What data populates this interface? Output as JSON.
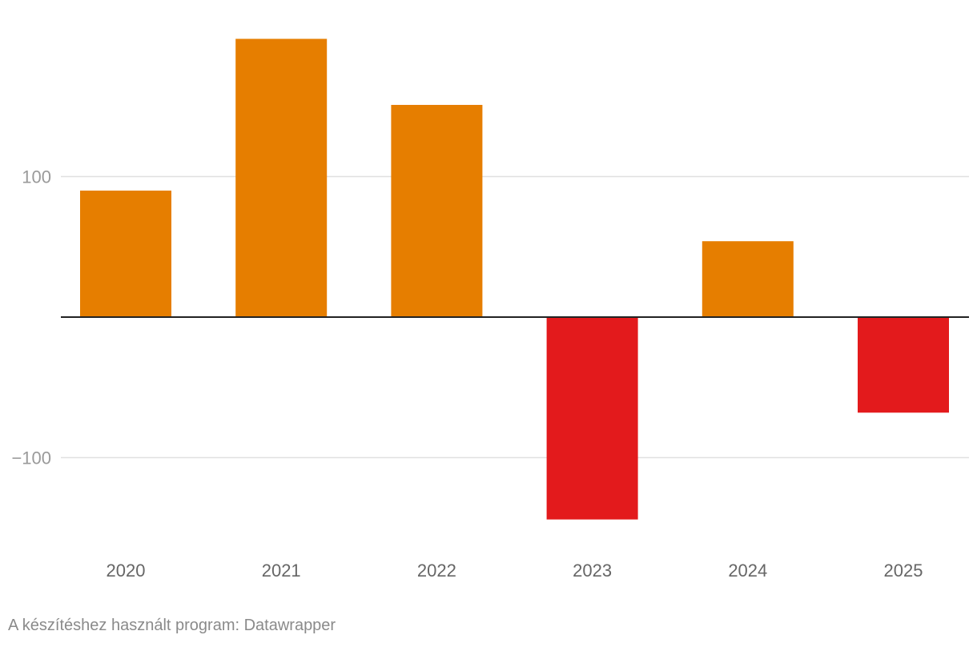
{
  "chart_data": {
    "type": "bar",
    "categories": [
      "2020",
      "2021",
      "2022",
      "2023",
      "2024",
      "2025"
    ],
    "series": [
      {
        "values": [
          90,
          198,
          151,
          -144,
          54,
          -68
        ]
      }
    ],
    "y_ticks": [
      {
        "value": 100,
        "label": "100"
      },
      {
        "value": -100,
        "label": "−100"
      }
    ],
    "ylim": [
      -160,
      205
    ],
    "grid": true,
    "colors": {
      "positive": "#e67e00",
      "negative": "#e31a1c",
      "grid": "#e0e0e0",
      "baseline": "#222222"
    }
  },
  "footer": {
    "credit": "A készítéshez használt program: Datawrapper"
  }
}
